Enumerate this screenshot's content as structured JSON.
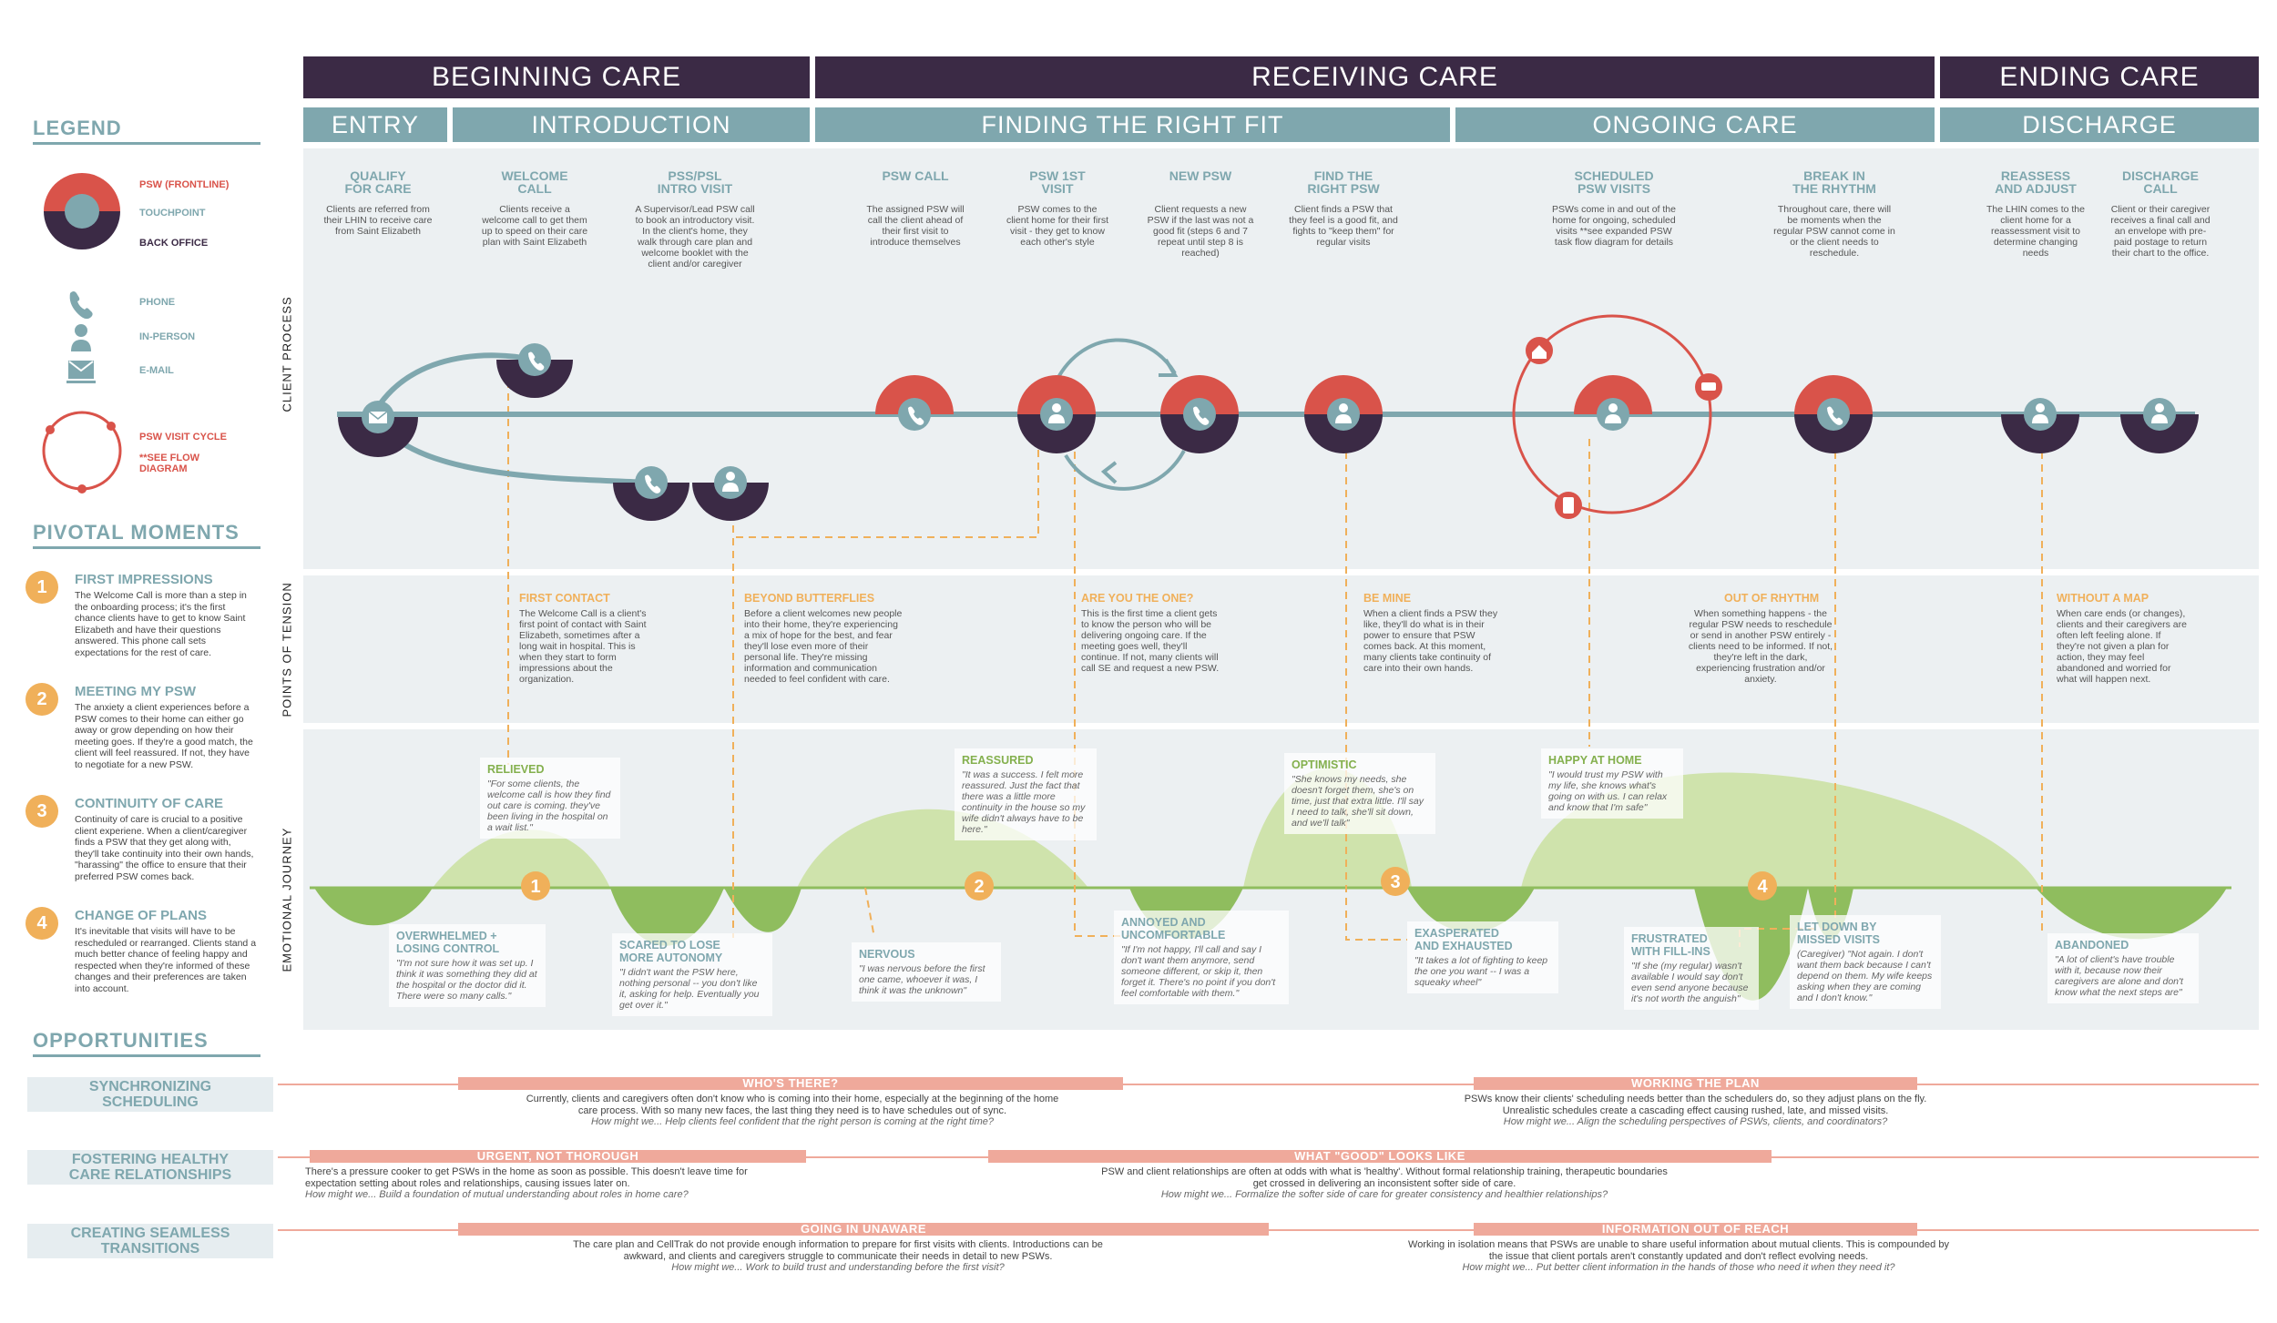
{
  "phases": [
    {
      "label": "BEGINNING CARE"
    },
    {
      "label": "RECEIVING CARE"
    },
    {
      "label": "ENDING CARE"
    }
  ],
  "stages": [
    {
      "label": "ENTRY"
    },
    {
      "label": "INTRODUCTION"
    },
    {
      "label": "FINDING THE RIGHT FIT"
    },
    {
      "label": "ONGOING CARE"
    },
    {
      "label": "DISCHARGE"
    }
  ],
  "legend": {
    "title": "LEGEND",
    "psw": "PSW (FRONTLINE)",
    "touchpoint": "TOUCHPOINT",
    "back_office": "BACK OFFICE",
    "phone": "PHONE",
    "in_person": "IN-PERSON",
    "email": "E-MAIL",
    "cycle": "PSW VISIT CYCLE",
    "cycle_note": "**SEE FLOW DIAGRAM",
    "colors": {
      "psw": "#d9534a",
      "touch": "#7fa7ae",
      "back": "#3b2a45"
    }
  },
  "pivotal": {
    "title": "PIVOTAL MOMENTS",
    "items": [
      {
        "num": "1",
        "title": "FIRST IMPRESSIONS",
        "text": "The Welcome Call is more than a step in the onboarding process; it's the first chance clients have to get to know Saint Elizabeth and have their questions answered. This phone call sets expectations for the rest of care."
      },
      {
        "num": "2",
        "title": "MEETING MY PSW",
        "text": "The anxiety a client experiences before a PSW comes to their home can either go away or grow depending on how their meeting goes. If they're a good match, the client will feel reassured. If not, they have to negotiate for a new PSW."
      },
      {
        "num": "3",
        "title": "CONTINUITY OF CARE",
        "text": "Continuity of care is crucial to a positive client experiene. When a client/caregiver finds a PSW that they get along with, they'll take continuity into their own hands, \"harassing\" the office to ensure that their preferred PSW comes back."
      },
      {
        "num": "4",
        "title": "CHANGE OF PLANS",
        "text": "It's inevitable that visits will have to be rescheduled or rearranged. Clients stand a much better chance of feeling happy and respected when they're informed of these changes and their preferences are taken into account."
      }
    ]
  },
  "row_labels": {
    "process": "CLIENT PROCESS",
    "tension": "POINTS OF TENSION",
    "emotional": "EMOTIONAL JOURNEY"
  },
  "steps": [
    {
      "title": "QUALIFY\nFOR CARE",
      "text": "Clients are referred from their LHIN to receive care from Saint Elizabeth"
    },
    {
      "title": "WELCOME\nCALL",
      "text": "Clients receive a welcome call to get them up to speed on their care plan with Saint Elizabeth"
    },
    {
      "title": "PSS/PSL\nINTRO VISIT",
      "text": "A Supervisor/Lead PSW call to book an introductory visit. In the client's home, they walk through care plan and welcome booklet with the client and/or caregiver"
    },
    {
      "title": "PSW CALL",
      "text": "The assigned PSW will call the client ahead of their first visit to introduce themselves"
    },
    {
      "title": "PSW 1ST\nVISIT",
      "text": "PSW comes to the client home for their first visit - they get to know each other's style"
    },
    {
      "title": "NEW PSW",
      "text": "Client requests a new PSW if the last was not a good fit (steps 6 and 7 repeat until step 8 is reached)"
    },
    {
      "title": "FIND THE\nRIGHT PSW",
      "text": "Client finds a PSW that they feel is a good fit, and fights to \"keep them\" for regular visits"
    },
    {
      "title": "SCHEDULED\nPSW VISITS",
      "text": "PSWs come in and out of the home for ongoing, scheduled visits **see expanded PSW task flow diagram for details"
    },
    {
      "title": "BREAK IN\nTHE RHYTHM",
      "text": "Throughout care, there will be moments when the regular PSW cannot come in or the client needs to reschedule."
    },
    {
      "title": "REASSESS\nAND ADJUST",
      "text": "The LHIN comes to the client home for a reassessment visit to determine changing needs"
    },
    {
      "title": "DISCHARGE\nCALL",
      "text": "Client or their caregiver receives a final call and an envelope with pre-paid postage to return their chart to the office."
    }
  ],
  "tensions": [
    {
      "title": "FIRST CONTACT",
      "text": "The Welcome Call is a client's first point of contact with Saint Elizabeth, sometimes after a long wait in hospital. This is when they start to form impressions about the organization."
    },
    {
      "title": "BEYOND BUTTERFLIES",
      "text": "Before a client welcomes new people into their home, they're experiencing a mix of hope for the best, and fear they'll lose even more of their personal life. They're missing information and communication needed to feel confident with care."
    },
    {
      "title": "ARE YOU THE ONE?",
      "text": "This is the first time a client gets to know the person who will be delivering ongoing care. If the meeting goes well, they'll continue. If not, many clients will call SE and request a new PSW."
    },
    {
      "title": "BE MINE",
      "text": "When a client finds a PSW they like, they'll do what is in their power to ensure that PSW comes back. At this moment, many clients take continuity of care into their own hands."
    },
    {
      "title": "OUT OF RHYTHM",
      "text": "When something happens - the regular PSW needs to reschedule or send in another PSW entirely - clients need to be informed. If not, they're left in the dark, experiencing frustration and/or anxiety."
    },
    {
      "title": "WITHOUT A MAP",
      "text": "When care ends (or changes), clients and their caregivers are often left feeling alone. If they're not given a plan for action, they may feel abandoned and worried for what will happen next."
    }
  ],
  "emotions": [
    {
      "title": "RELIEVED",
      "quote": "\"For some clients, the welcome call is how they find out care is coming. they've been living in the hospital on a wait list.\""
    },
    {
      "title": "OVERWHELMED +\nLOSING CONTROL",
      "quote": "\"I'm not sure how it was set up. I think it was something they did at the hospital or the doctor did it. There were so many calls.\""
    },
    {
      "title": "SCARED TO LOSE\nMORE AUTONOMY",
      "quote": "\"I didn't want the PSW here, nothing personal -- you don't like it, asking for help. Eventually you get over it.\""
    },
    {
      "title": "NERVOUS",
      "quote": "\"I was nervous before the first one came, whoever it was, I think it was the unknown\""
    },
    {
      "title": "REASSURED",
      "quote": "\"It was a success. I felt more reassured. Just the fact that there was a little more continuity in the house so my wife didn't always have to be here.\""
    },
    {
      "title": "ANNOYED AND\nUNCOMFORTABLE",
      "quote": "\"If I'm not happy, I'll call and say I don't want them anymore, send someone different, or skip it, then forget it. There's no point if you don't feel comfortable with them.\""
    },
    {
      "title": "OPTIMISTIC",
      "quote": "\"She knows my needs, she doesn't forget them, she's on time, just that extra little. I'll say I need to talk, she'll sit down, and we'll talk\""
    },
    {
      "title": "EXASPERATED\nAND EXHAUSTED",
      "quote": "\"It takes a lot of fighting to keep the one you want -- I was a squeaky wheel\""
    },
    {
      "title": "HAPPY AT HOME",
      "quote": "\"I would trust my PSW with my life, she knows what's going on with us. I can relax and know that I'm safe\""
    },
    {
      "title": "FRUSTRATED\nWITH FILL-INS",
      "quote": "\"If she (my regular) wasn't available I would say don't even send anyone because it's not worth the anguish\""
    },
    {
      "title": "LET DOWN BY\nMISSED VISITS",
      "quote": "(Caregiver) \"Not again. I don't want them back because I can't depend on them. My wife keeps asking when they are coming and I don't know.\""
    },
    {
      "title": "ABANDONED",
      "quote": "\"A lot of client's have trouble with it, because now their caregivers are alone and don't know what the next steps are\""
    }
  ],
  "opportunities": {
    "title": "OPPORTUNITIES",
    "rows": [
      {
        "label": "SYNCHRONIZING\nSCHEDULING"
      },
      {
        "label": "FOSTERING HEALTHY\nCARE RELATIONSHIPS"
      },
      {
        "label": "CREATING SEAMLESS\nTRANSITIONS"
      }
    ],
    "items": [
      {
        "title": "WHO'S THERE?",
        "text": "Currently, clients and caregivers often don't know who is coming into their home, especially at the beginning of the home care process. With so many new faces, the last thing they need is to have schedules out of sync.",
        "hmw": "How might we... Help clients feel confident that the right person is coming at the right time?"
      },
      {
        "title": "WORKING THE PLAN",
        "text": "PSWs know their clients' scheduling needs better than the schedulers do, so they adjust plans on the fly. Unrealistic schedules create a cascading effect causing rushed, late, and missed visits.",
        "hmw": "How might we... Align the scheduling perspectives of PSWs, clients, and coordinators?"
      },
      {
        "title": "URGENT, NOT THOROUGH",
        "text": "There's a pressure cooker to get PSWs in the home as soon as possible. This doesn't leave time for expectation setting about roles and relationships, causing issues later on.",
        "hmw": "How might we... Build a foundation of mutual understanding about roles in home care?"
      },
      {
        "title": "WHAT \"GOOD\" LOOKS LIKE",
        "text": "PSW and client relationships are often at odds with what is 'healthy'. Without formal relationship training, therapeutic boundaries get crossed in delivering an inconsistent softer side of care.",
        "hmw": "How might we... Formalize the softer side of care for greater consistency and healthier relationships?"
      },
      {
        "title": "GOING IN UNAWARE",
        "text": "The care plan and CellTrak do not provide enough information to prepare for first visits with clients. Introductions can be awkward, and clients and caregivers struggle to communicate their needs in detail to new PSWs.",
        "hmw": "How might we... Work to build trust and understanding before the first visit?"
      },
      {
        "title": "INFORMATION OUT OF REACH",
        "text": "Working in isolation means that PSWs are unable to share useful information about mutual clients. This is compounded by the issue that client portals aren't constantly updated and don't reflect evolving needs.",
        "hmw": "How might we... Put better client information in the hands of those who need it when they need it?"
      }
    ]
  }
}
